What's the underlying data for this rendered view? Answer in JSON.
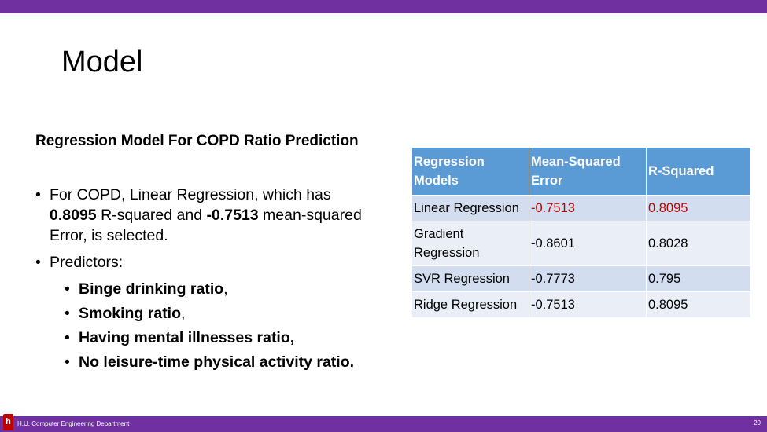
{
  "slide": {
    "title": "Model",
    "subtitle": "Regression Model For COPD Ratio Prediction",
    "bullet1": {
      "part1": "For COPD, Linear Regression, which has ",
      "r2": "0.8095",
      "part2": " R-squared and ",
      "mse": "-0.7513",
      "part3": " mean-squared Error, is selected."
    },
    "bullet2": "Predictors:",
    "predictors": [
      {
        "label": "Binge drinking ratio",
        "tail": ","
      },
      {
        "label": "Smoking ratio",
        "tail": ","
      },
      {
        "label": "Having mental illnesses ratio,",
        "tail": ""
      },
      {
        "label": "No leisure-time physical activity ratio.",
        "tail": ""
      }
    ]
  },
  "table": {
    "headers": [
      "Regression Models",
      "Mean-Squared Error",
      "R-Squared"
    ],
    "rows": [
      [
        "Linear Regression",
        "-0.7513",
        "0.8095"
      ],
      [
        "Gradient Regression",
        "-0.8601",
        "0.8028"
      ],
      [
        "SVR Regression",
        "-0.7773",
        "0.795"
      ],
      [
        "Ridge Regression",
        "-0.7513",
        "0.8095"
      ]
    ]
  },
  "footer": {
    "logo_letter": "h",
    "department": "H.U. Computer Engineering Department",
    "page_number": "20"
  },
  "colors": {
    "accent_purple": "#7030a0",
    "table_header": "#5b9bd5",
    "highlight_red": "#c00000"
  }
}
